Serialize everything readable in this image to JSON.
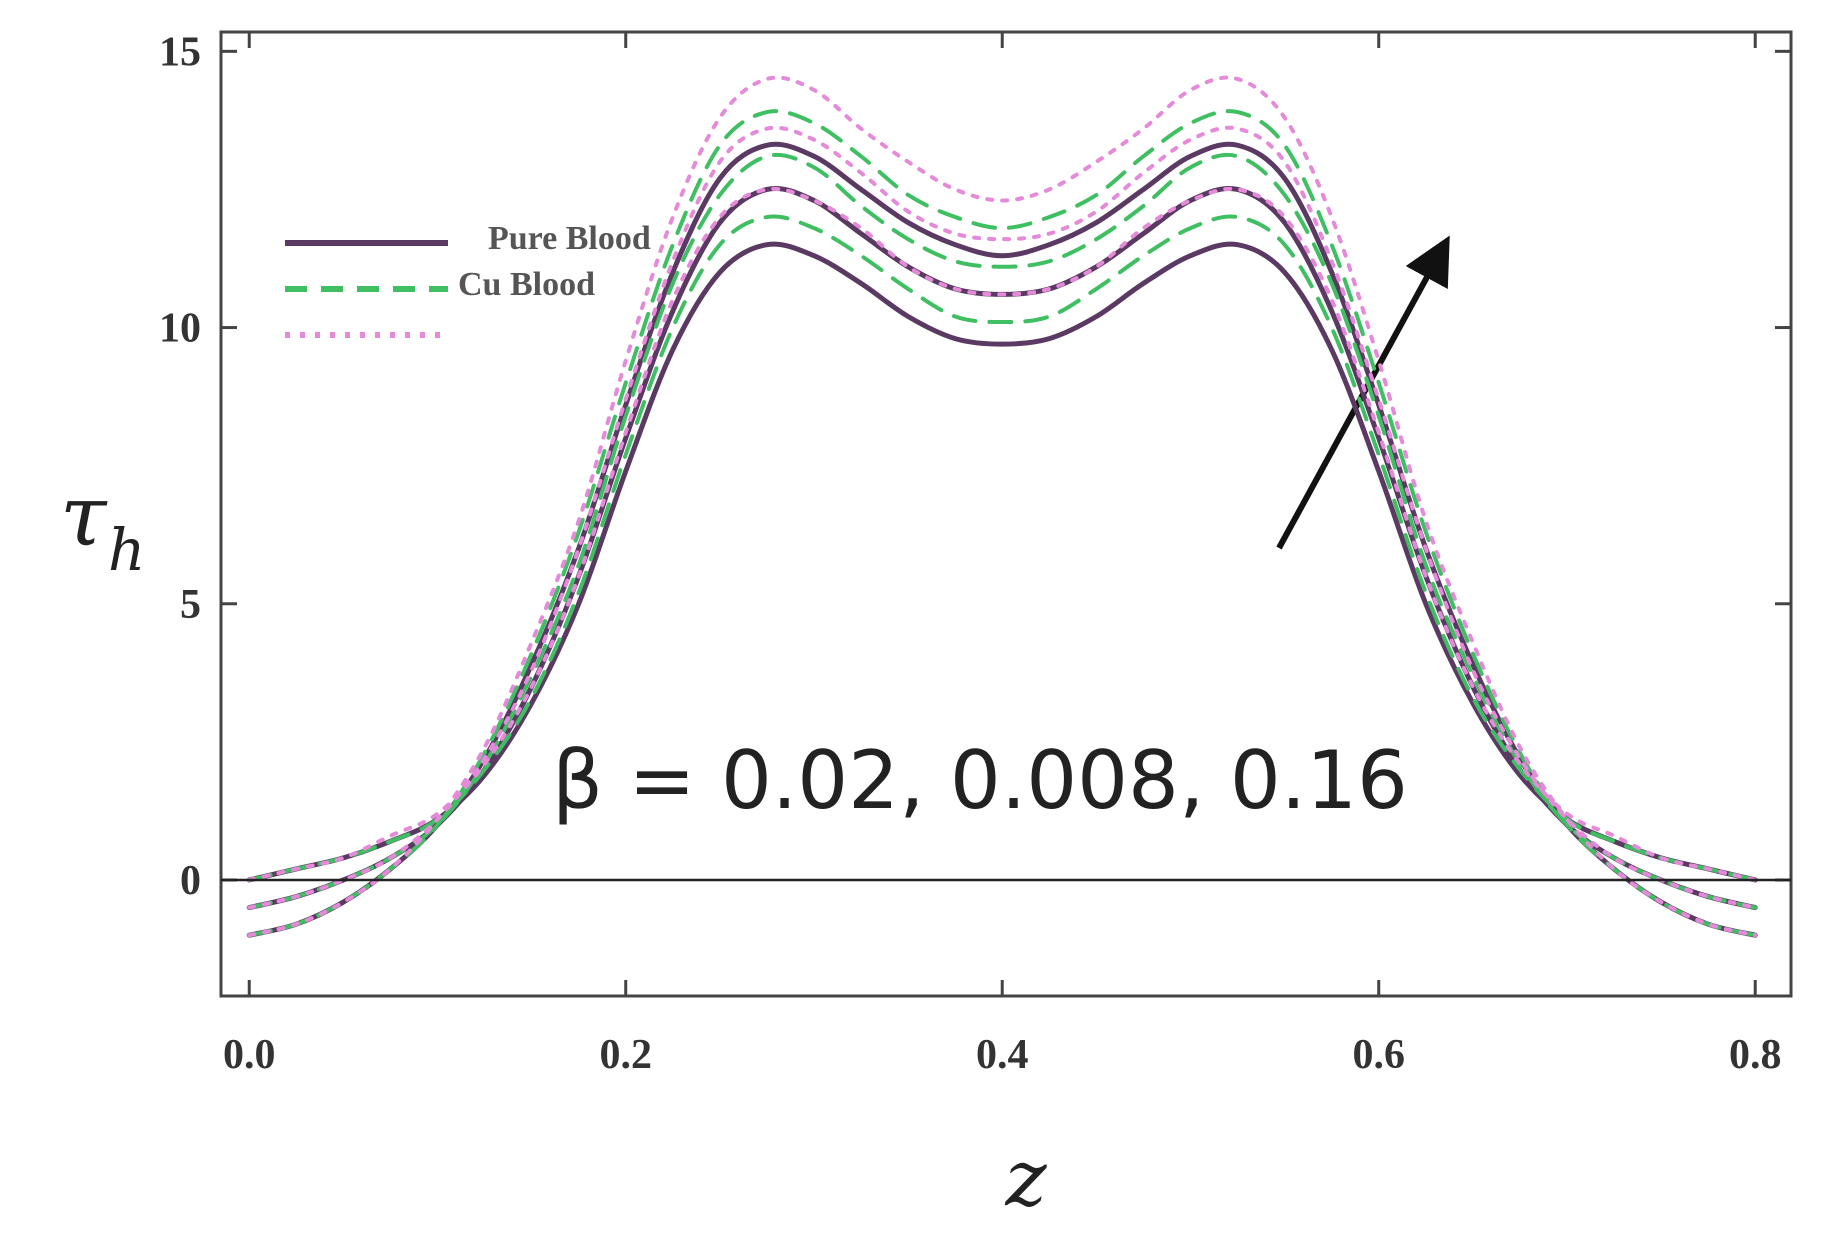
{
  "chart_data": {
    "type": "line",
    "ylabel": {
      "symbol": "τ",
      "subscript": "h"
    },
    "xlabel": "z",
    "annotation": "β = 0.02, 0.008, 0.16",
    "x": [
      0,
      0.025,
      0.05,
      0.075,
      0.1,
      0.125,
      0.15,
      0.175,
      0.2,
      0.225,
      0.25,
      0.275,
      0.3,
      0.325,
      0.35,
      0.375,
      0.4,
      0.425,
      0.45,
      0.475,
      0.5,
      0.525,
      0.55,
      0.575,
      0.6,
      0.625,
      0.65,
      0.675,
      0.7,
      0.725,
      0.75,
      0.775,
      0.8
    ],
    "series": [
      {
        "name": "Pure Blood",
        "color": "#5a3a62",
        "style": "solid",
        "values": [
          0,
          0.2,
          0.4,
          0.7,
          1.1,
          1.9,
          3.2,
          5.0,
          7.4,
          9.6,
          11.0,
          11.5,
          11.3,
          10.8,
          10.2,
          9.8,
          9.7,
          9.8,
          10.2,
          10.8,
          11.3,
          11.5,
          11.0,
          9.6,
          7.4,
          5.0,
          3.2,
          1.9,
          1.1,
          0.7,
          0.4,
          0.2,
          0
        ]
      },
      {
        "name": "Pure Blood",
        "color": "#5a3a62",
        "style": "solid",
        "values": [
          -0.5,
          -0.3,
          0.0,
          0.4,
          1.0,
          2.0,
          3.5,
          5.5,
          8.0,
          10.3,
          11.9,
          12.5,
          12.3,
          11.7,
          11.1,
          10.7,
          10.6,
          10.7,
          11.1,
          11.7,
          12.3,
          12.5,
          11.9,
          10.3,
          8.0,
          5.5,
          3.5,
          2.0,
          1.0,
          0.4,
          0.0,
          -0.3,
          -0.5
        ]
      },
      {
        "name": "Pure Blood",
        "color": "#5a3a62",
        "style": "solid",
        "values": [
          -1,
          -0.8,
          -0.4,
          0.2,
          1.0,
          2.2,
          3.9,
          6.0,
          8.6,
          11.0,
          12.7,
          13.3,
          13.1,
          12.5,
          11.9,
          11.5,
          11.3,
          11.5,
          11.9,
          12.5,
          13.1,
          13.3,
          12.7,
          11.0,
          8.6,
          6.0,
          3.9,
          2.2,
          1.0,
          0.2,
          -0.4,
          -0.8,
          -1
        ]
      },
      {
        "name": "Cu Blood",
        "color": "#3fbf62",
        "style": "dashed",
        "values": [
          0,
          0.2,
          0.4,
          0.7,
          1.1,
          2.0,
          3.3,
          5.2,
          7.7,
          10.0,
          11.5,
          12.0,
          11.8,
          11.3,
          10.7,
          10.2,
          10.1,
          10.2,
          10.7,
          11.3,
          11.8,
          12.0,
          11.5,
          10.0,
          7.7,
          5.2,
          3.3,
          2.0,
          1.1,
          0.7,
          0.4,
          0.2,
          0
        ]
      },
      {
        "name": "Cu Blood",
        "color": "#3fbf62",
        "style": "dashed",
        "values": [
          -0.5,
          -0.3,
          0.0,
          0.4,
          1.0,
          2.1,
          3.7,
          5.7,
          8.4,
          10.8,
          12.4,
          13.1,
          12.9,
          12.2,
          11.6,
          11.2,
          11.1,
          11.2,
          11.6,
          12.2,
          12.9,
          13.1,
          12.4,
          10.8,
          8.4,
          5.7,
          3.7,
          2.1,
          1.0,
          0.4,
          0.0,
          -0.3,
          -0.5
        ]
      },
      {
        "name": "Cu Blood",
        "color": "#3fbf62",
        "style": "dashed",
        "values": [
          -1,
          -0.8,
          -0.4,
          0.2,
          1.0,
          2.3,
          4.1,
          6.3,
          9.0,
          11.5,
          13.3,
          13.9,
          13.7,
          13.1,
          12.4,
          12.0,
          11.8,
          12.0,
          12.4,
          13.1,
          13.7,
          13.9,
          13.3,
          11.5,
          9.0,
          6.3,
          4.1,
          2.3,
          1.0,
          0.2,
          -0.4,
          -0.8,
          -1
        ]
      },
      {
        "color": "#e48ad8",
        "style": "dotted",
        "values": [
          0,
          0.2,
          0.4,
          0.8,
          1.2,
          2.1,
          3.5,
          5.5,
          8.1,
          10.5,
          12.0,
          12.5,
          12.3,
          11.8,
          11.1,
          10.7,
          10.6,
          10.7,
          11.1,
          11.8,
          12.3,
          12.5,
          12.0,
          10.5,
          8.1,
          5.5,
          3.5,
          2.1,
          1.2,
          0.8,
          0.4,
          0.2,
          0
        ]
      },
      {
        "color": "#e48ad8",
        "style": "dotted",
        "values": [
          -0.5,
          -0.3,
          0.0,
          0.4,
          1.1,
          2.2,
          3.8,
          6.0,
          8.7,
          11.2,
          13.0,
          13.6,
          13.4,
          12.8,
          12.1,
          11.7,
          11.6,
          11.7,
          12.1,
          12.8,
          13.4,
          13.6,
          13.0,
          11.2,
          8.7,
          6.0,
          3.8,
          2.2,
          1.1,
          0.4,
          0.0,
          -0.3,
          -0.5
        ]
      },
      {
        "color": "#e48ad8",
        "style": "dotted",
        "values": [
          -1,
          -0.8,
          -0.4,
          0.2,
          1.1,
          2.4,
          4.3,
          6.5,
          9.4,
          12.0,
          13.8,
          14.5,
          14.3,
          13.6,
          13.0,
          12.5,
          12.3,
          12.5,
          13.0,
          13.6,
          14.3,
          14.5,
          13.8,
          12.0,
          9.4,
          6.5,
          4.3,
          2.4,
          1.1,
          0.2,
          -0.4,
          -0.8,
          -1
        ]
      }
    ],
    "xlim": [
      -0.015,
      0.819
    ],
    "ylim": [
      -2.1,
      15.35
    ],
    "xticks": [
      {
        "value": 0,
        "label": "0.0"
      },
      0.2,
      0.4,
      0.6,
      0.8
    ],
    "yticks": [
      0,
      5,
      10,
      15
    ],
    "legend": "upper left",
    "grid": false
  }
}
